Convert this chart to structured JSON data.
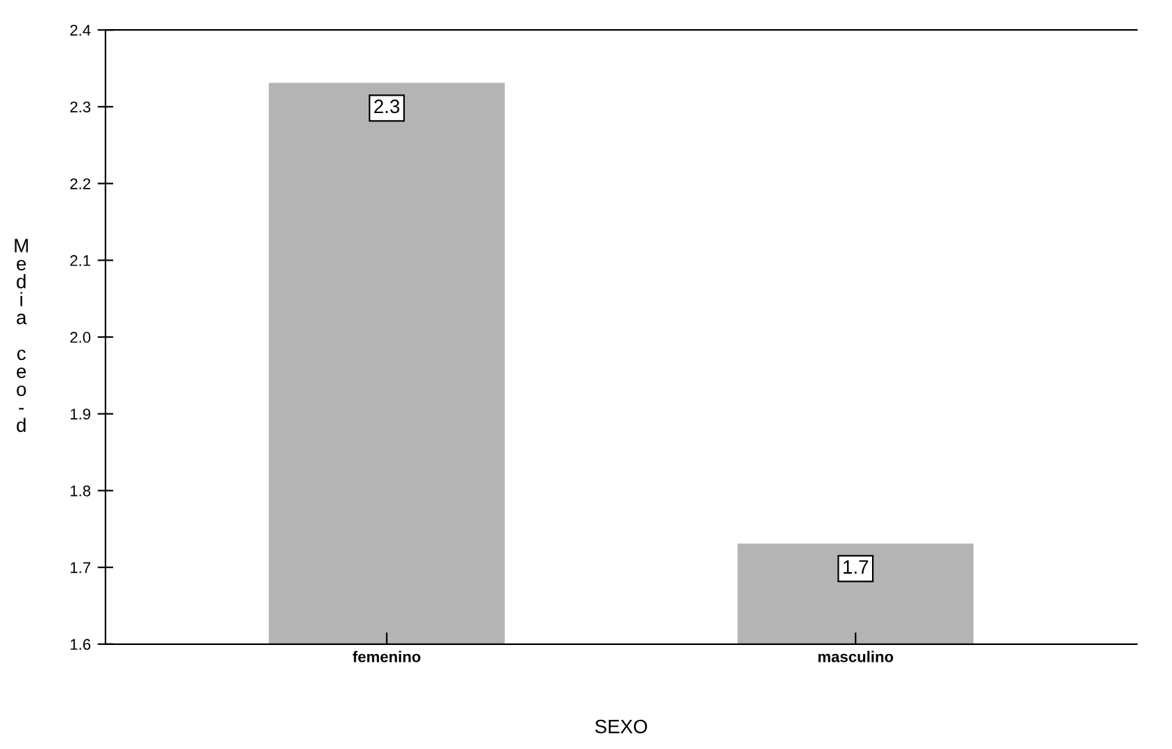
{
  "chart_data": {
    "type": "bar",
    "xlabel": "SEXO",
    "ylabel": "Media ceo-d",
    "categories": [
      "femenino",
      "masculino"
    ],
    "values": [
      2.33,
      1.73
    ],
    "value_labels": [
      "2.3",
      "1.7"
    ],
    "color": "#b4b4b4",
    "ylim": [
      1.6,
      2.4
    ],
    "yticks": [
      1.6,
      1.7,
      1.8,
      1.9,
      {
        "value": 2.0,
        "label": "2.0"
      },
      2.1,
      2.2,
      2.3,
      2.4
    ],
    "grid": false,
    "legend": false
  }
}
